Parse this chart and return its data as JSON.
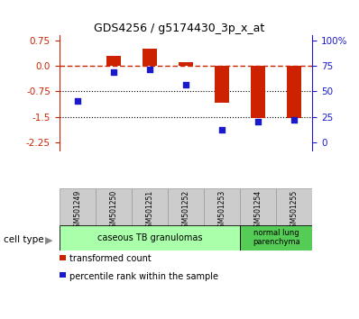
{
  "title": "GDS4256 / g5174430_3p_x_at",
  "samples": [
    "GSM501249",
    "GSM501250",
    "GSM501251",
    "GSM501252",
    "GSM501253",
    "GSM501254",
    "GSM501255"
  ],
  "transformed_count": [
    0.0,
    0.3,
    0.5,
    0.1,
    -1.1,
    -1.55,
    -1.55
  ],
  "percentile_rank": [
    43,
    68,
    70,
    57,
    18,
    25,
    27
  ],
  "ylim_left": [
    -2.5,
    0.9
  ],
  "yticks_left": [
    0.75,
    0.0,
    -0.75,
    -1.5,
    -2.25
  ],
  "yticks_right_labels": [
    "100%",
    "75",
    "50",
    "25",
    "0"
  ],
  "bar_color": "#cc2200",
  "dot_color": "#1a1acc",
  "hline_y": 0.0,
  "dotted_lines": [
    -0.75,
    -1.5
  ],
  "cell_type1_label": "caseous TB granulomas",
  "cell_type1_samples": [
    0,
    1,
    2,
    3,
    4
  ],
  "cell_type1_color": "#aaffaa",
  "cell_type2_label": "normal lung\nparenchyma",
  "cell_type2_samples": [
    5,
    6
  ],
  "cell_type2_color": "#55cc55",
  "legend_bar_label": "transformed count",
  "legend_dot_label": "percentile rank within the sample",
  "cell_type_label": "cell type",
  "bar_width": 0.4
}
